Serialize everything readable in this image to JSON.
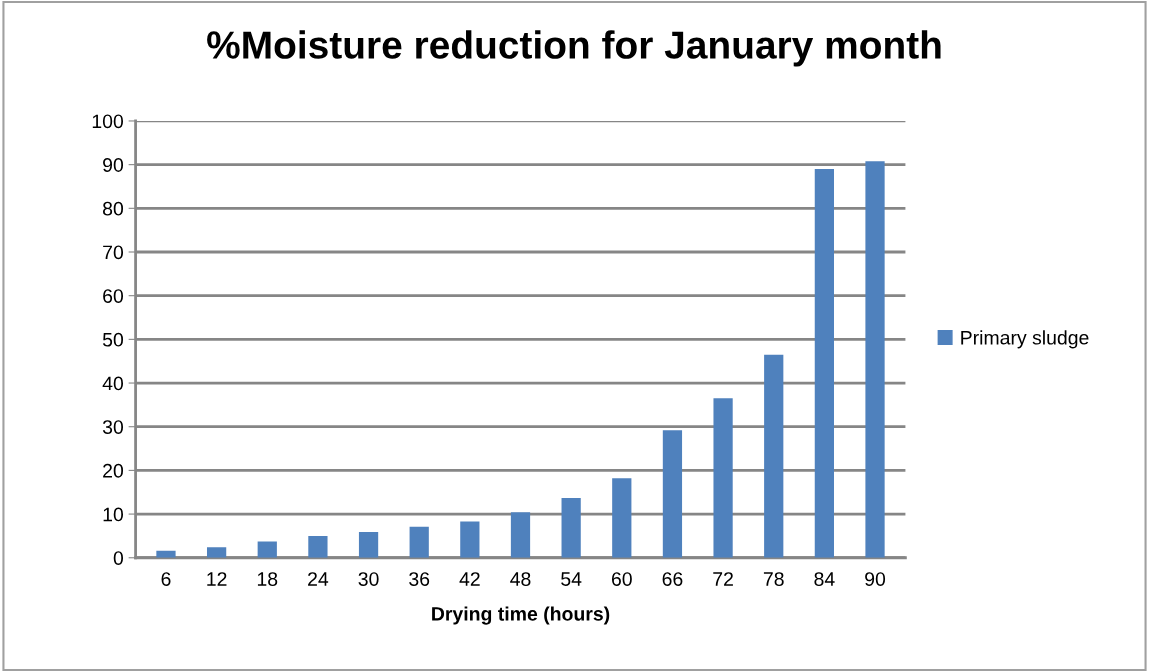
{
  "chart_data": {
    "type": "bar",
    "title": "%Moisture reduction for January month",
    "xlabel": "Drying time (hours)",
    "categories": [
      "6",
      "12",
      "18",
      "24",
      "30",
      "36",
      "42",
      "48",
      "54",
      "60",
      "66",
      "72",
      "78",
      "84",
      "90"
    ],
    "series": [
      {
        "name": "Primary sludge",
        "color": "#4f81bd",
        "values": [
          1.6,
          2.4,
          3.7,
          5.0,
          5.9,
          7.1,
          8.3,
          10.4,
          13.7,
          18.2,
          29.2,
          36.5,
          46.5,
          89,
          90.8
        ]
      }
    ],
    "ylim": [
      0,
      100
    ],
    "yticks": [
      0,
      10,
      20,
      30,
      40,
      50,
      60,
      70,
      80,
      90,
      100
    ],
    "grid": "y",
    "legend": "right"
  }
}
